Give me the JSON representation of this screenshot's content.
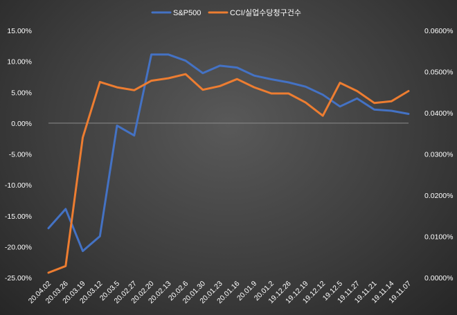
{
  "chart_data": {
    "type": "line",
    "title": "",
    "legend_position": "top-center",
    "grid": false,
    "categories": [
      "20.04.02",
      "20.03.26",
      "20.03.19",
      "20.03.12",
      "20.03.5",
      "20.02.27",
      "20.02.20",
      "20.02.13",
      "20.02.6",
      "20.01.30",
      "20.01.23",
      "20.01.16",
      "20.01.9",
      "20.01.2",
      "19.12.26",
      "19.12.19",
      "19.12.12",
      "19.12.5",
      "19.11.27",
      "19.11.21",
      "19.11.14",
      "19.11.07"
    ],
    "left_axis": {
      "ticks": [
        "15.00%",
        "10.00%",
        "5.00%",
        "0.00%",
        "-5.00%",
        "-10.00%",
        "-15.00%",
        "-20.00%",
        "-25.00%"
      ],
      "ylim": [
        -25,
        15
      ]
    },
    "right_axis": {
      "ticks": [
        "0.0600%",
        "0.0500%",
        "0.0400%",
        "0.0300%",
        "0.0200%",
        "0.0100%",
        "0.0000%"
      ],
      "ylim": [
        0,
        0.06
      ]
    },
    "series": [
      {
        "name": "S&P500",
        "axis": "left",
        "color": "#4472c4",
        "values": [
          -17.0,
          -13.9,
          -20.7,
          -18.3,
          -0.4,
          -2.0,
          11.1,
          11.1,
          10.1,
          8.1,
          9.3,
          9.0,
          7.7,
          7.1,
          6.6,
          5.9,
          4.6,
          2.7,
          4.0,
          2.2,
          2.0,
          1.5
        ]
      },
      {
        "name": "CCI/실업수당청구건수",
        "axis": "right",
        "color": "#ed7d31",
        "values": [
          0.0012,
          0.0028,
          0.034,
          0.0475,
          0.0462,
          0.0455,
          0.0478,
          0.0484,
          0.0494,
          0.0456,
          0.0465,
          0.0482,
          0.0462,
          0.0447,
          0.0447,
          0.0425,
          0.0393,
          0.0473,
          0.0453,
          0.0424,
          0.0428,
          0.0453
        ]
      }
    ]
  }
}
